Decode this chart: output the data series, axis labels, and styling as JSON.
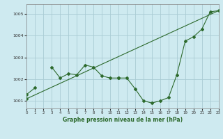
{
  "xlabel": "Graphe pression niveau de la mer (hPa)",
  "background_color": "#ceeaf0",
  "grid_color": "#aaccd4",
  "line_color": "#2d6a2d",
  "x_hours": [
    0,
    1,
    2,
    3,
    4,
    5,
    6,
    7,
    8,
    9,
    10,
    11,
    12,
    13,
    14,
    15,
    16,
    17,
    18,
    19,
    20,
    21,
    22,
    23
  ],
  "pressure_series1": [
    1001.3,
    1001.6,
    null,
    1002.55,
    1002.05,
    1002.25,
    1002.2,
    1002.65,
    1002.55,
    1002.15,
    1002.05,
    1002.05,
    null,
    null,
    null,
    null,
    null,
    null,
    null,
    null,
    null,
    null,
    null,
    null
  ],
  "pressure_series2": [
    1001.1,
    null,
    null,
    null,
    null,
    null,
    null,
    null,
    null,
    null,
    null,
    1002.05,
    1002.05,
    1001.55,
    1001.0,
    1000.9,
    1001.0,
    1001.15,
    1002.2,
    1003.75,
    1003.95,
    1004.3,
    1005.1,
    1005.15
  ],
  "trend_x": [
    0,
    23
  ],
  "trend_y": [
    1001.1,
    1005.15
  ],
  "ylim": [
    1000.65,
    1005.45
  ],
  "yticks": [
    1001,
    1002,
    1003,
    1004,
    1005
  ],
  "xlim": [
    0,
    23
  ]
}
